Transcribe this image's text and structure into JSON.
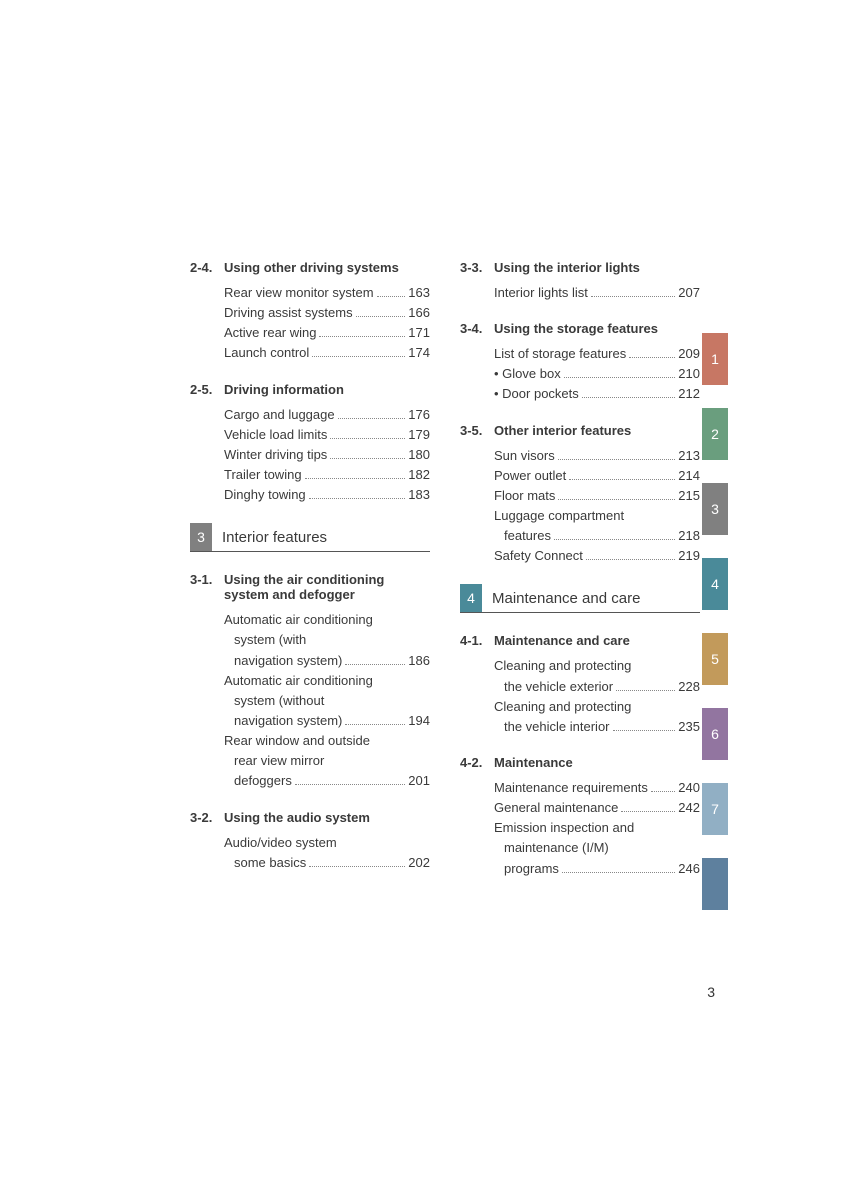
{
  "colors": {
    "chapter3_box": "#808080",
    "chapter4_box": "#4a8a99",
    "tabs": [
      "#c77764",
      "#6a9e7e",
      "#808080",
      "#4a8a99",
      "#c29a5b",
      "#9275a0",
      "#91afc4",
      "#5e809e"
    ]
  },
  "left_col": [
    {
      "num": "2-4.",
      "title": "Using other driving systems",
      "items": [
        {
          "label": "Rear view monitor system",
          "page": "163"
        },
        {
          "label": "Driving assist systems",
          "page": "166"
        },
        {
          "label": "Active rear wing",
          "page": "171"
        },
        {
          "label": "Launch control",
          "page": "174"
        }
      ]
    },
    {
      "num": "2-5.",
      "title": "Driving information",
      "items": [
        {
          "label": "Cargo and luggage",
          "page": "176"
        },
        {
          "label": "Vehicle load limits",
          "page": "179"
        },
        {
          "label": "Winter driving tips",
          "page": "180"
        },
        {
          "label": "Trailer towing",
          "page": "182"
        },
        {
          "label": "Dinghy towing",
          "page": "183"
        }
      ]
    },
    {
      "chapter": "3",
      "chapter_title": "Interior features",
      "box_color": "#808080"
    },
    {
      "num": "3-1.",
      "title": "Using the air conditioning system and defogger",
      "items": [
        {
          "label": "Automatic air conditioning",
          "sub": "system (with",
          "sub2": "navigation system)",
          "page": "186"
        },
        {
          "label": "Automatic air conditioning",
          "sub": "system (without",
          "sub2": "navigation system)",
          "page": "194"
        },
        {
          "label": "Rear window and outside",
          "sub": "rear view mirror",
          "sub2": "defoggers",
          "page": "201"
        }
      ]
    },
    {
      "num": "3-2.",
      "title": "Using the audio system",
      "items": [
        {
          "label": "Audio/video system",
          "sub2": "some basics",
          "page": "202"
        }
      ]
    }
  ],
  "right_col": [
    {
      "num": "3-3.",
      "title": "Using the interior lights",
      "items": [
        {
          "label": "Interior lights list",
          "page": "207"
        }
      ]
    },
    {
      "num": "3-4.",
      "title": "Using the storage features",
      "items": [
        {
          "label": "List of storage features",
          "page": "209"
        },
        {
          "label": "Glove box",
          "page": "210",
          "bullet": true
        },
        {
          "label": "Door pockets",
          "page": "212",
          "bullet": true
        }
      ]
    },
    {
      "num": "3-5.",
      "title": "Other interior features",
      "items": [
        {
          "label": "Sun visors",
          "page": "213"
        },
        {
          "label": "Power outlet",
          "page": "214"
        },
        {
          "label": "Floor mats",
          "page": "215"
        },
        {
          "label": "Luggage compartment",
          "sub2": "features",
          "page": "218"
        },
        {
          "label": "Safety Connect",
          "page": "219"
        }
      ]
    },
    {
      "chapter": "4",
      "chapter_title": "Maintenance and care",
      "box_color": "#4a8a99"
    },
    {
      "num": "4-1.",
      "title": "Maintenance and care",
      "items": [
        {
          "label": "Cleaning and protecting",
          "sub2": "the vehicle exterior",
          "page": "228"
        },
        {
          "label": "Cleaning and protecting",
          "sub2": "the vehicle interior",
          "page": "235"
        }
      ]
    },
    {
      "num": "4-2.",
      "title": "Maintenance",
      "items": [
        {
          "label": "Maintenance requirements",
          "page": "240"
        },
        {
          "label": "General maintenance",
          "page": "242"
        },
        {
          "label": "Emission inspection and",
          "sub": "maintenance (I/M)",
          "sub2": "programs",
          "page": "246"
        }
      ]
    }
  ],
  "tabs": [
    "1",
    "2",
    "3",
    "4",
    "5",
    "6",
    "7",
    ""
  ],
  "page_number": "3"
}
